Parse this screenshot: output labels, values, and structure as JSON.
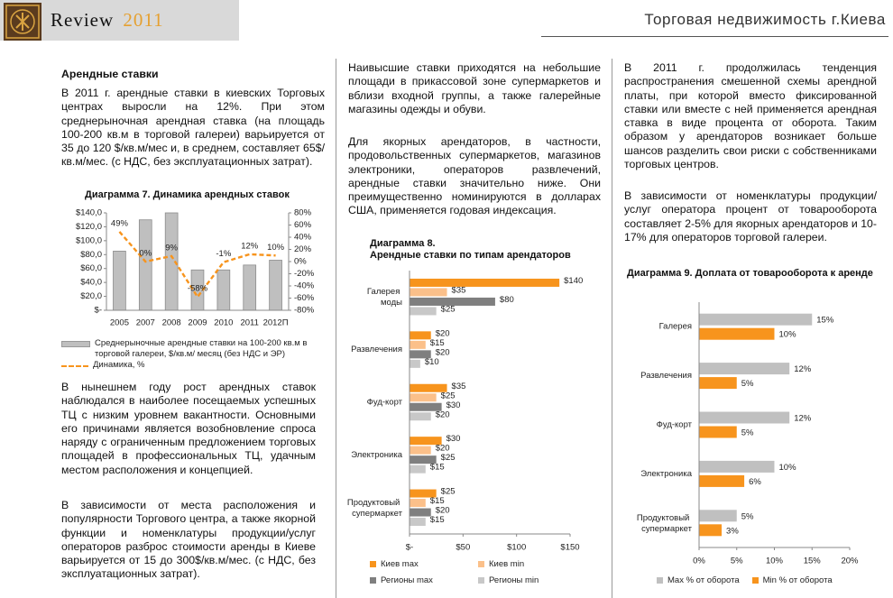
{
  "header": {
    "brand": "Review",
    "year": "2011",
    "title": "Торговая недвижимость г.Киева"
  },
  "text": {
    "col1": {
      "heading": "Арендные ставки",
      "paragraphs": [
        "В 2011 г. арендные ставки в киевских Торговых центрах выросли на 12%. При этом среднерыночная арендная ставка (на площадь 100-200 кв.м в торговой галереи) варьируется от 35 до 120 $/кв.м/мес и, в среднем, составляет 65$/кв.м/мес. (с НДС, без эксплуатационных затрат).",
        "В нынешнем году рост арендных ставок наблюдался в наиболее посещаемых успешных ТЦ с низким уровнем вакантности. Основными его причинами является возобновление спроса наряду с ограниченным предложением торговых площадей в профессиональных ТЦ, удачным местом расположения и концепцией.",
        "В зависимости от места расположения и популярности Торгового центра, а также якорной функции и номенклатуры продукции/услуг операторов разброс стоимости аренды в Киеве варьируется от 15 до 300$/кв.м/мес. (с НДС, без эксплуатационных затрат)."
      ]
    },
    "col2": {
      "paragraphs": [
        "Наивысшие ставки приходятся на небольшие площади в прикассовой зоне супермаркетов и вблизи входной группы, а также галерейные магазины одежды и обуви.",
        "Для якорных арендаторов, в частности, продовольственных супермаркетов, магазинов электроники, операторов развлечений, арендные ставки значительно ниже. Они преимущественно номинируются в долларах США, применяется годовая индексация."
      ]
    },
    "col3": {
      "paragraphs": [
        "В 2011 г. продолжилась тенденция распространения смешенной схемы арендной платы, при которой вместо фиксированной ставки или вместе с ней применяется арендная ставка в виде процента от оборота. Таким образом у арендаторов возникает больше шансов разделить свои риски с собственниками торговых центров.",
        "В зависимости от номенклатуры продукции/услуг оператора процент от товарооборота составляет 2-5% для якорных арендаторов и 10-17% для операторов торговой галереи."
      ]
    }
  },
  "chart_data": [
    {
      "type": "bar",
      "title": "Диаграмма 7. Динамика арендных ставок",
      "categories": [
        "2005",
        "2007",
        "2008",
        "2009",
        "2010",
        "2011",
        "2012П"
      ],
      "series": [
        {
          "name": "Среднерыночные арендные ставки на 100-200 кв.м в торговой галереи, $/кв.м/ месяц (без НДС и ЭР)",
          "color": "#bfbfbf",
          "values": [
            85,
            130,
            140,
            58,
            58,
            65,
            72
          ]
        },
        {
          "name": "Динамика, %",
          "type": "line",
          "axis": "y2",
          "color": "#f7941d",
          "values": [
            49,
            0,
            9,
            -58,
            -1,
            12,
            10
          ],
          "value_labels": [
            "49%",
            "0%",
            "9%",
            "-58%",
            "-1%",
            "12%",
            "10%"
          ]
        }
      ],
      "ylim": [
        0,
        140
      ],
      "yticks": [
        {
          "value": 0,
          "label": "$-"
        },
        {
          "value": 20,
          "label": "$20,0"
        },
        {
          "value": 40,
          "label": "$40,0"
        },
        {
          "value": 60,
          "label": "$60,0"
        },
        {
          "value": 80,
          "label": "$80,0"
        },
        {
          "value": 100,
          "label": "$100,0"
        },
        {
          "value": 120,
          "label": "$120,0"
        },
        {
          "value": 140,
          "label": "$140,0"
        }
      ],
      "y2lim": [
        -80,
        80
      ],
      "y2ticks": [
        {
          "value": -80,
          "label": "-80%"
        },
        {
          "value": -60,
          "label": "-60%"
        },
        {
          "value": -40,
          "label": "-40%"
        },
        {
          "value": -20,
          "label": "-20%"
        },
        {
          "value": 0,
          "label": "0%"
        },
        {
          "value": 20,
          "label": "20%"
        },
        {
          "value": 40,
          "label": "40%"
        },
        {
          "value": 60,
          "label": "60%"
        },
        {
          "value": 80,
          "label": "80%"
        }
      ],
      "legend": "bottom"
    },
    {
      "type": "hbar",
      "title": "Диаграмма 8.",
      "subtitle": "Арендные ставки по типам арендаторов",
      "categories": [
        "Галерея моды",
        "Развлечения",
        "Фуд-корт",
        "Электроника",
        "Продуктовый супермаркет"
      ],
      "series": [
        {
          "name": "Киев max",
          "color": "#f7941d",
          "values": [
            140,
            20,
            35,
            30,
            25
          ],
          "value_labels": [
            "$140",
            "$20",
            "$35",
            "$30",
            "$25"
          ]
        },
        {
          "name": "Киев min",
          "color": "#fbc08a",
          "values": [
            35,
            15,
            25,
            20,
            15
          ],
          "value_labels": [
            "$35",
            "$15",
            "$25",
            "$20",
            "$15"
          ]
        },
        {
          "name": "Регионы max",
          "color": "#7f7f7f",
          "values": [
            80,
            20,
            30,
            25,
            20
          ],
          "value_labels": [
            "$80",
            "$20",
            "$30",
            "$25",
            "$20"
          ]
        },
        {
          "name": "Регионы min",
          "color": "#c8c8c8",
          "values": [
            25,
            10,
            20,
            15,
            15
          ],
          "value_labels": [
            "$25",
            "$10",
            "$20",
            "$15",
            "$15"
          ]
        }
      ],
      "xlim": [
        0,
        150
      ],
      "xticks": [
        {
          "value": 0,
          "label": "$-"
        },
        {
          "value": 50,
          "label": "$50"
        },
        {
          "value": 100,
          "label": "$100"
        },
        {
          "value": 150,
          "label": "$150"
        }
      ],
      "legend": "bottom"
    },
    {
      "type": "hbar",
      "title": "Диаграмма 9. Доплата от товарооборота к аренде",
      "categories": [
        "Галерея",
        "Развлечения",
        "Фуд-корт",
        "Электроника",
        "Продуктовый супермаркет"
      ],
      "series": [
        {
          "name": "Max % от оборота",
          "color": "#c0c0c0",
          "values": [
            15,
            12,
            12,
            10,
            5
          ],
          "value_labels": [
            "15%",
            "12%",
            "12%",
            "10%",
            "5%"
          ]
        },
        {
          "name": "Min % от оборота",
          "color": "#f7941d",
          "values": [
            10,
            5,
            5,
            6,
            3
          ],
          "value_labels": [
            "10%",
            "5%",
            "5%",
            "6%",
            "3%"
          ]
        }
      ],
      "xlim": [
        0,
        20
      ],
      "xticks": [
        {
          "value": 0,
          "label": "0%"
        },
        {
          "value": 5,
          "label": "5%"
        },
        {
          "value": 10,
          "label": "10%"
        },
        {
          "value": 15,
          "label": "15%"
        },
        {
          "value": 20,
          "label": "20%"
        }
      ],
      "legend": "bottom"
    }
  ]
}
